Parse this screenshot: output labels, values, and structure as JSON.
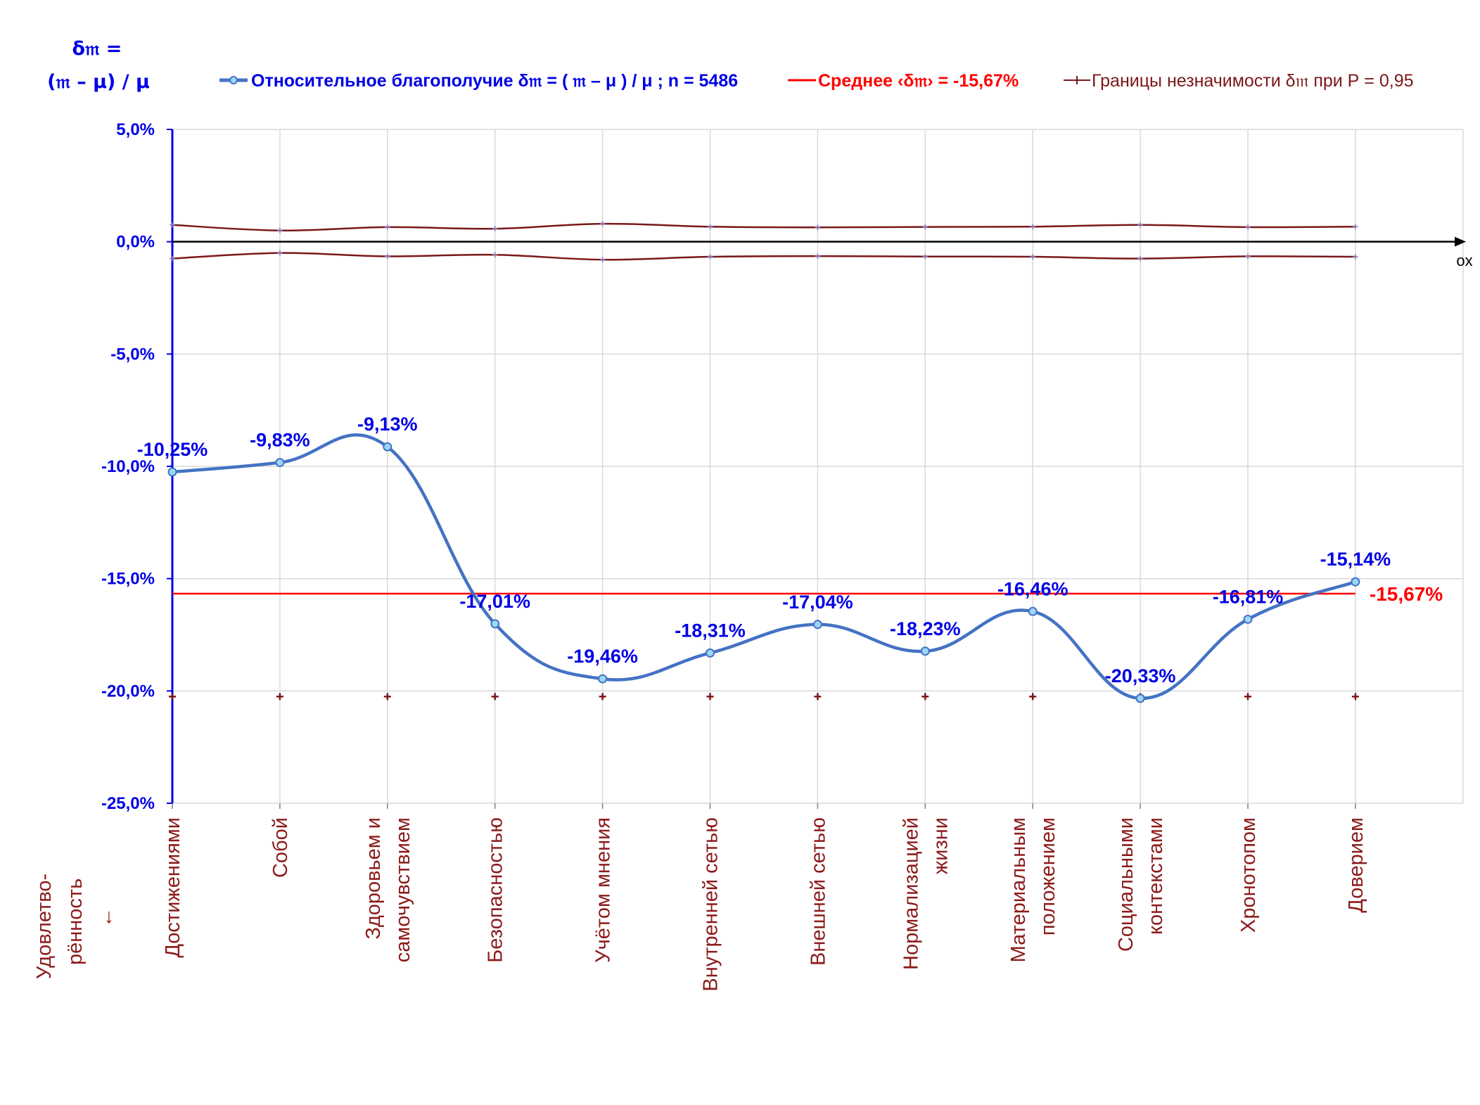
{
  "chart_data": {
    "type": "line",
    "ylabel_lines": [
      "δ𝔪 =",
      "(𝔪 – μ) / μ"
    ],
    "y_axis_caption_lines": [
      "Удовлетво-",
      "рённость",
      "↓"
    ],
    "x_axis_name": "ox",
    "ylim": [
      -25.0,
      5.0
    ],
    "yticks": [
      5.0,
      0.0,
      -5.0,
      -10.0,
      -15.0,
      -20.0,
      -25.0
    ],
    "ytick_labels": [
      "5,0%",
      "0,0%",
      "-5,0%",
      "-10,0%",
      "-15,0%",
      "-20,0%",
      "-25,0%"
    ],
    "grid": true,
    "legend_position": "top",
    "categories": [
      [
        "Достижениями"
      ],
      [
        "Собой"
      ],
      [
        "Здоровьем и",
        "самочувствием"
      ],
      [
        "Безопасностью"
      ],
      [
        "Учётом мнения"
      ],
      [
        "Внутренней сетью"
      ],
      [
        "Внешней сетью"
      ],
      [
        "Нормализацией",
        "жизни"
      ],
      [
        "Материальным",
        "положением"
      ],
      [
        "Социальными",
        "контекстами"
      ],
      [
        "Хронотопом"
      ],
      [
        "Доверием"
      ]
    ],
    "series": [
      {
        "name": "Относительное благополучие δ𝔪 = ( 𝔪 – μ ) / μ ; n = 5486",
        "color": "#4472c4",
        "values": [
          -10.25,
          -9.83,
          -9.13,
          -17.01,
          -19.46,
          -18.31,
          -17.04,
          -18.23,
          -16.46,
          -20.33,
          -16.81,
          -15.14
        ],
        "labels": [
          "-10,25%",
          "-9,83%",
          "-9,13%",
          "-17,01%",
          "-19,46%",
          "-18,31%",
          "-17,04%",
          "-18,23%",
          "-16,46%",
          "-20,33%",
          "-16,81%",
          "-15,14%"
        ]
      },
      {
        "name": "Среднее ‹δ𝔪› = -15,67%",
        "color": "#ff0000",
        "value": -15.67,
        "label": "-15,67%"
      },
      {
        "name": "Границы незначимости δ𝔪 при Р = 0,95",
        "color": "#7b1818",
        "upper": [
          0.75,
          0.5,
          0.65,
          0.58,
          0.8,
          0.67,
          0.64,
          0.66,
          0.67,
          0.75,
          0.65,
          0.67
        ],
        "lower": [
          -0.75,
          -0.5,
          -0.65,
          -0.58,
          -0.8,
          -0.67,
          -0.64,
          -0.66,
          -0.67,
          -0.75,
          -0.65,
          -0.67
        ],
        "lower_extra_markers_value": -20.25
      }
    ]
  }
}
